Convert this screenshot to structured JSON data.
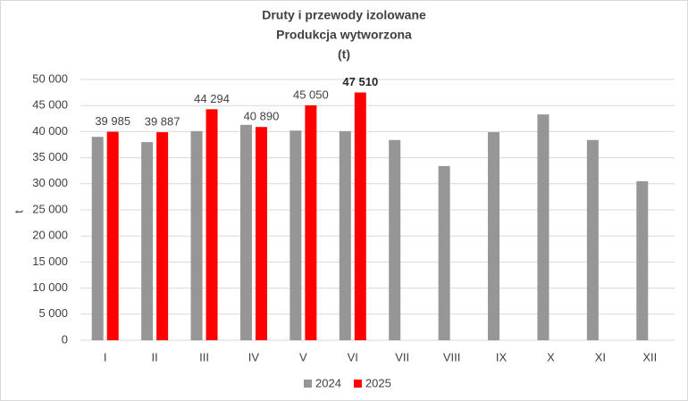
{
  "chart_data": {
    "type": "bar",
    "title": [
      "Druty i przewody izolowane",
      "Produkcja wytworzona",
      "(t)"
    ],
    "y_label": "t",
    "categories": [
      "I",
      "II",
      "III",
      "IV",
      "V",
      "VI",
      "VII",
      "VIII",
      "IX",
      "X",
      "XI",
      "XII"
    ],
    "series": [
      {
        "name": "2024",
        "color": "#969696",
        "values": [
          39000,
          38000,
          40100,
          41300,
          40200,
          40100,
          38400,
          33400,
          39900,
          43300,
          38400,
          30500
        ]
      },
      {
        "name": "2025",
        "color": "#ff0000",
        "values": [
          39985,
          39887,
          44294,
          40890,
          45050,
          47510,
          null,
          null,
          null,
          null,
          null,
          null
        ],
        "value_labels": [
          "39 985",
          "39 887",
          "44 294",
          "40 890",
          "45 050",
          "47 510",
          null,
          null,
          null,
          null,
          null,
          null
        ]
      }
    ],
    "ylim": [
      0,
      50000
    ],
    "yticks": [
      0,
      {
        "value": 5000,
        "label": "5 000"
      },
      {
        "value": 10000,
        "label": "10 000"
      },
      {
        "value": 15000,
        "label": "15 000"
      },
      {
        "value": 20000,
        "label": "20 000"
      },
      {
        "value": 25000,
        "label": "25 000"
      },
      {
        "value": 30000,
        "label": "30 000"
      },
      {
        "value": 35000,
        "label": "35 000"
      },
      {
        "value": 40000,
        "label": "40 000"
      },
      {
        "value": 45000,
        "label": "45 000"
      },
      {
        "value": 50000,
        "label": "50 000"
      }
    ],
    "grid": true,
    "legend": "bottom"
  }
}
